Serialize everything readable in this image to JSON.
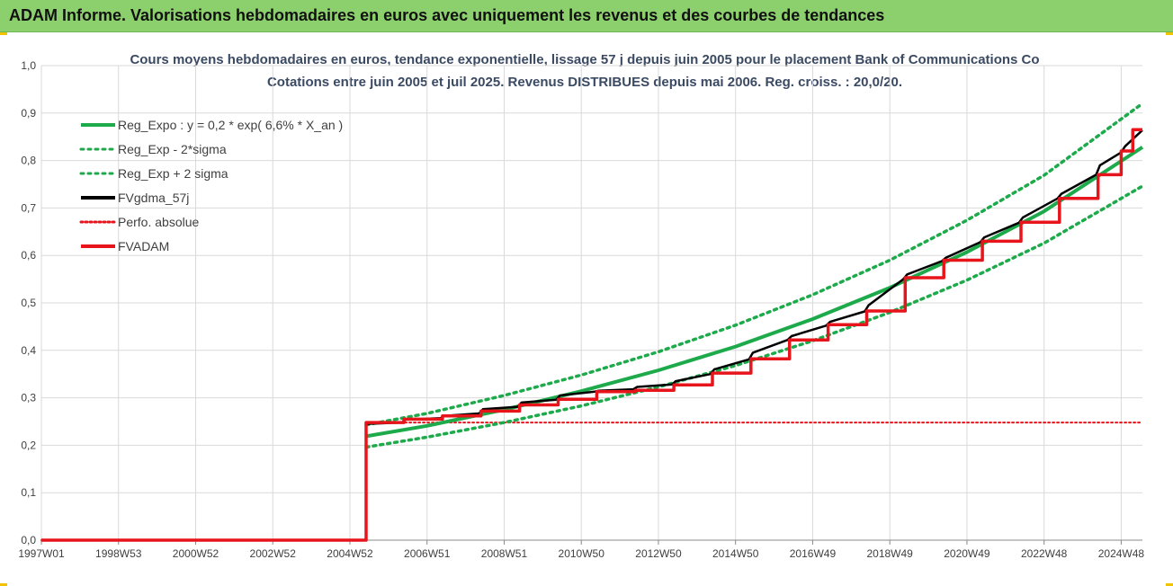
{
  "header": {
    "title": "ADAM Informe. Valorisations hebdomadaires en euros avec uniquement les revenus et des courbes de tendances"
  },
  "chart_data": {
    "type": "line",
    "title": "Cours moyens hebdomadaires en euros, tendance exponentielle, lissage 57 j depuis juin 2005 pour le placement Bank of Communications Co",
    "subtitle": "Cotations entre juin 2005 et juil 2025. Revenus DISTRIBUES depuis mai 2006. Reg. croiss. : 20,0/20.",
    "xlabel": "",
    "ylabel": "",
    "ylim": [
      0,
      1.0
    ],
    "xlim": [
      1997.0,
      2025.55
    ],
    "y_ticks": [
      "0,0",
      "0,1",
      "0,2",
      "0,3",
      "0,4",
      "0,5",
      "0,6",
      "0,7",
      "0,8",
      "0,9",
      "1,0"
    ],
    "x_ticks": [
      {
        "label": "1997W01",
        "x": 1997.0
      },
      {
        "label": "1998W53",
        "x": 1999.0
      },
      {
        "label": "2000W52",
        "x": 2001.0
      },
      {
        "label": "2002W52",
        "x": 2003.0
      },
      {
        "label": "2004W52",
        "x": 2005.0
      },
      {
        "label": "2006W51",
        "x": 2007.0
      },
      {
        "label": "2008W51",
        "x": 2009.0
      },
      {
        "label": "2010W50",
        "x": 2011.0
      },
      {
        "label": "2012W50",
        "x": 2013.0
      },
      {
        "label": "2014W50",
        "x": 2015.0
      },
      {
        "label": "2016W49",
        "x": 2017.0
      },
      {
        "label": "2018W49",
        "x": 2019.0
      },
      {
        "label": "2020W49",
        "x": 2021.0
      },
      {
        "label": "2022W48",
        "x": 2023.0
      },
      {
        "label": "2024W48",
        "x": 2025.0
      }
    ],
    "grid": true,
    "legend_position": "top-left",
    "series": [
      {
        "name": "Reg_Expo : y = 0,2 * exp( 6,6% *  X_an )",
        "color": "#1daa4b",
        "style": "solid",
        "x": [
          2005.42,
          2007.0,
          2009.0,
          2011.0,
          2013.0,
          2015.0,
          2017.0,
          2019.0,
          2021.0,
          2023.0,
          2025.55
        ],
        "y": [
          0.219,
          0.241,
          0.275,
          0.314,
          0.358,
          0.408,
          0.466,
          0.532,
          0.607,
          0.693,
          0.828
        ]
      },
      {
        "name": "Reg_Exp - 2*sigma",
        "color": "#1daa4b",
        "style": "dotted",
        "x": [
          2005.42,
          2007.0,
          2009.0,
          2011.0,
          2013.0,
          2015.0,
          2017.0,
          2019.0,
          2021.0,
          2023.0,
          2025.55
        ],
        "y": [
          0.196,
          0.217,
          0.248,
          0.283,
          0.323,
          0.368,
          0.42,
          0.48,
          0.548,
          0.626,
          0.746
        ]
      },
      {
        "name": "Reg_Exp + 2 sigma",
        "color": "#1daa4b",
        "style": "dotted",
        "x": [
          2005.42,
          2007.0,
          2009.0,
          2011.0,
          2013.0,
          2015.0,
          2017.0,
          2019.0,
          2021.0,
          2023.0,
          2025.55
        ],
        "y": [
          0.243,
          0.267,
          0.305,
          0.348,
          0.397,
          0.453,
          0.517,
          0.59,
          0.674,
          0.769,
          0.92
        ]
      },
      {
        "name": "FVgdma_57j",
        "color": "#000000",
        "style": "solid",
        "x": [
          2005.42,
          2006.35,
          2006.45,
          2007.35,
          2007.45,
          2008.35,
          2008.45,
          2009.35,
          2009.45,
          2010.35,
          2010.45,
          2011.35,
          2011.45,
          2012.35,
          2012.45,
          2013.35,
          2013.45,
          2014.35,
          2014.45,
          2015.35,
          2015.45,
          2016.35,
          2016.45,
          2017.35,
          2017.45,
          2018.35,
          2018.45,
          2019.35,
          2019.45,
          2020.35,
          2020.45,
          2021.35,
          2021.45,
          2022.35,
          2022.45,
          2023.35,
          2023.45,
          2024.35,
          2024.45,
          2025.0,
          2025.1,
          2025.55
        ],
        "y": [
          0.245,
          0.248,
          0.254,
          0.257,
          0.262,
          0.267,
          0.276,
          0.281,
          0.29,
          0.296,
          0.305,
          0.313,
          0.315,
          0.318,
          0.323,
          0.328,
          0.335,
          0.35,
          0.36,
          0.381,
          0.395,
          0.422,
          0.43,
          0.452,
          0.46,
          0.482,
          0.495,
          0.55,
          0.56,
          0.588,
          0.595,
          0.628,
          0.638,
          0.669,
          0.68,
          0.72,
          0.73,
          0.77,
          0.79,
          0.817,
          0.83,
          0.864
        ]
      },
      {
        "name": "Perfo. absolue",
        "color": "#e8141b",
        "style": "dotted",
        "x": [
          1997.0,
          2005.42,
          2005.42,
          2025.55
        ],
        "y": [
          0,
          0,
          0.248,
          0.248
        ]
      },
      {
        "name": "FVADAM",
        "color": "#e8141b",
        "style": "solid",
        "x": [
          1997.0,
          2005.42,
          2005.42,
          2006.4,
          2006.4,
          2007.4,
          2007.4,
          2008.4,
          2008.4,
          2009.4,
          2009.4,
          2010.4,
          2010.4,
          2011.4,
          2011.4,
          2012.4,
          2012.4,
          2013.4,
          2013.4,
          2014.4,
          2014.4,
          2015.4,
          2015.4,
          2016.4,
          2016.4,
          2017.4,
          2017.4,
          2018.4,
          2018.4,
          2019.4,
          2019.4,
          2020.4,
          2020.4,
          2021.4,
          2021.4,
          2022.4,
          2022.4,
          2023.4,
          2023.4,
          2024.4,
          2024.4,
          2025.0,
          2025.0,
          2025.3,
          2025.3,
          2025.55
        ],
        "y": [
          0,
          0,
          0.248,
          0.248,
          0.255,
          0.255,
          0.262,
          0.262,
          0.272,
          0.272,
          0.285,
          0.285,
          0.297,
          0.297,
          0.313,
          0.313,
          0.316,
          0.316,
          0.327,
          0.327,
          0.352,
          0.352,
          0.382,
          0.382,
          0.422,
          0.422,
          0.454,
          0.454,
          0.483,
          0.483,
          0.553,
          0.553,
          0.59,
          0.59,
          0.63,
          0.63,
          0.67,
          0.67,
          0.72,
          0.72,
          0.77,
          0.77,
          0.82,
          0.82,
          0.865,
          0.865
        ]
      }
    ]
  }
}
